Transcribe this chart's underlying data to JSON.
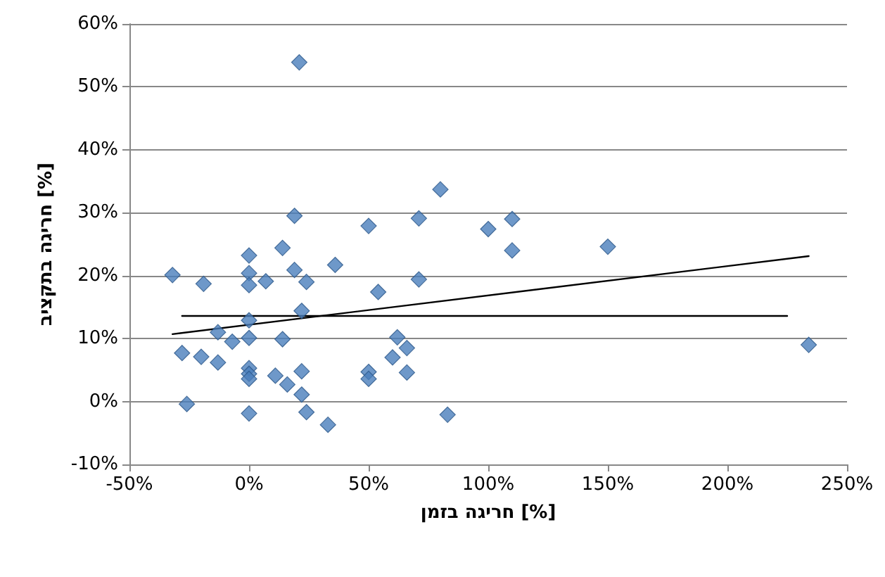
{
  "chart_data": {
    "type": "scatter",
    "xlabel": "חריגה בזמן [%]",
    "ylabel": "חריגה בתקציב [%]",
    "xlim": [
      -50,
      250
    ],
    "ylim": [
      -10,
      60
    ],
    "xticks": [
      {
        "value": -50,
        "label": "-50%"
      },
      {
        "value": 0,
        "label": "0%"
      },
      {
        "value": 50,
        "label": "50%"
      },
      {
        "value": 100,
        "label": "100%"
      },
      {
        "value": 150,
        "label": "150%"
      },
      {
        "value": 200,
        "label": "200%"
      },
      {
        "value": 250,
        "label": "250%"
      }
    ],
    "yticks": [
      {
        "value": -10,
        "label": "-10%"
      },
      {
        "value": 0,
        "label": "0%"
      },
      {
        "value": 10,
        "label": "10%"
      },
      {
        "value": 20,
        "label": "20%"
      },
      {
        "value": 30,
        "label": "30%"
      },
      {
        "value": 40,
        "label": "40%"
      },
      {
        "value": 50,
        "label": "50%"
      },
      {
        "value": 60,
        "label": "60%"
      }
    ],
    "grid": "y",
    "marker": "diamond",
    "series": [
      {
        "color": "#4a7ebb",
        "x": [
          21,
          80,
          71,
          100,
          110,
          110,
          150,
          71,
          62,
          66,
          60,
          66,
          83,
          234,
          19,
          50,
          0,
          14,
          36,
          -32,
          -19,
          0,
          0,
          7,
          19,
          24,
          54,
          22,
          0,
          -13,
          -7,
          0,
          14,
          -28,
          -20,
          -13,
          0,
          0,
          0,
          11,
          16,
          22,
          22,
          24,
          33,
          -26,
          0,
          50,
          50
        ],
        "values": [
          53.9,
          33.7,
          29.1,
          27.4,
          29,
          24,
          24.6,
          19.4,
          10.2,
          8.5,
          7,
          4.6,
          -2.1,
          9,
          29.5,
          27.9,
          23.2,
          24.4,
          21.7,
          20.1,
          18.7,
          20.4,
          18.5,
          19.1,
          20.9,
          19,
          17.4,
          14.4,
          12.9,
          11,
          9.5,
          10.1,
          9.9,
          7.7,
          7.1,
          6.2,
          5.3,
          4.4,
          3.6,
          4.1,
          2.7,
          4.8,
          1.1,
          -1.7,
          -3.7,
          -0.4,
          -1.9,
          4.7,
          3.6
        ]
      },
      {
        "type": "line",
        "color": "#000000",
        "marker": "none",
        "line_style": "solid",
        "x": [
          -32,
          234
        ],
        "values": [
          10.7,
          23.1
        ]
      },
      {
        "type": "line",
        "color": "#000000",
        "marker": "none",
        "line_style": "solid",
        "x": [
          -28,
          225
        ],
        "values": [
          13.6,
          13.6
        ]
      }
    ]
  }
}
